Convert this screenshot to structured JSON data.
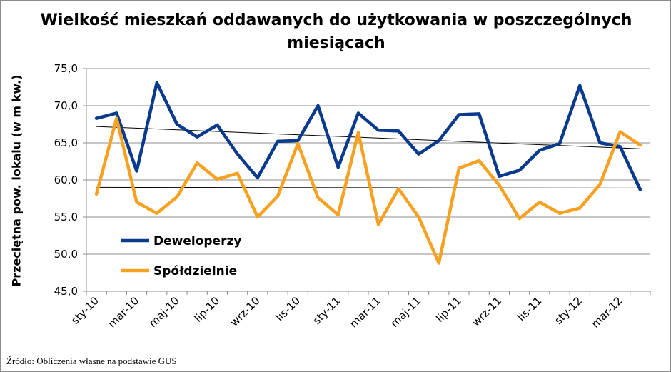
{
  "chart_data": {
    "type": "line",
    "title": "Wielkość mieszkań oddawanych do użytkowania  w poszczególnych miesiącach",
    "ylabel": "Przeciętna pow. lokalu (w m kw.)",
    "xlabel": "",
    "ylim": [
      45,
      75
    ],
    "yticks": [
      "45,0",
      "50,0",
      "55,0",
      "60,0",
      "65,0",
      "70,0",
      "75,0"
    ],
    "x_tick_labels": [
      "sty-10",
      "mar-10",
      "maj-10",
      "lip-10",
      "wrz-10",
      "lis-10",
      "sty-11",
      "mar-11",
      "maj-11",
      "lip-11",
      "wrz-11",
      "lis-11",
      "sty-12",
      "mar-12"
    ],
    "categories": [
      "sty-10",
      "lut-10",
      "mar-10",
      "kwi-10",
      "maj-10",
      "cze-10",
      "lip-10",
      "sie-10",
      "wrz-10",
      "paź-10",
      "lis-10",
      "gru-10",
      "sty-11",
      "lut-11",
      "mar-11",
      "kwi-11",
      "maj-11",
      "cze-11",
      "lip-11",
      "sie-11",
      "wrz-11",
      "paź-11",
      "lis-11",
      "gru-11",
      "sty-12",
      "lut-12",
      "mar-12",
      "kwi-12"
    ],
    "series": [
      {
        "name": "Deweloperzy",
        "color": "#0a3a8c",
        "values": [
          68.3,
          69.0,
          61.2,
          73.1,
          67.5,
          65.8,
          67.4,
          63.5,
          60.3,
          65.2,
          65.3,
          70.0,
          61.7,
          69.0,
          66.7,
          66.6,
          63.5,
          65.3,
          68.8,
          68.9,
          60.5,
          61.3,
          64.0,
          64.9,
          72.7,
          65.0,
          64.5,
          58.7
        ],
        "trend": [
          67.2,
          64.2
        ]
      },
      {
        "name": "Spółdzielnie",
        "color": "#f7a123",
        "values": [
          58.1,
          68.3,
          57.0,
          55.5,
          57.7,
          62.3,
          60.1,
          60.9,
          55.0,
          57.8,
          64.9,
          57.6,
          55.3,
          66.4,
          54.0,
          58.8,
          55.0,
          48.8,
          61.6,
          62.6,
          59.3,
          54.8,
          57.0,
          55.5,
          56.2,
          59.4,
          66.5,
          64.7
        ],
        "trend": [
          59.0,
          58.9
        ]
      }
    ],
    "grid": true,
    "legend": "lower-left"
  },
  "source": "Źródło: Obliczenia własne na podstawie GUS"
}
